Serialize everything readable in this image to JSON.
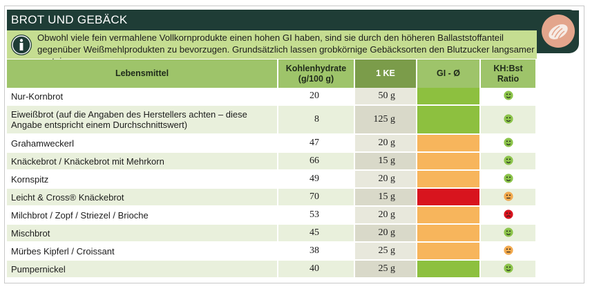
{
  "title": "BROT UND GEBÄCK",
  "icon": "bread-icon",
  "info": {
    "icon": "info-icon",
    "text": "Obwohl viele fein vermahlene Vollkornprodukte einen hohen GI haben, sind sie durch den höheren Ballaststoffanteil gegenüber Weißmehlprodukten zu bevorzugen. Grundsätzlich lassen grobkörnige Gebäcksorten den Blutzucker langsamer ansteigen."
  },
  "colors": {
    "header_green": "#9ec46a",
    "header_dark_green": "#7b9c4a",
    "title_bg": "#1f3d36",
    "gi_green": "#8dc03f",
    "gi_orange": "#f7b55c",
    "gi_red": "#d8141e",
    "smiley_green": "#8bc34a",
    "smiley_orange": "#f2a94e",
    "smiley_red": "#d8141e"
  },
  "table": {
    "headers": {
      "food": "Lebensmittel",
      "kh_line1": "Kohlenhydrate",
      "kh_line2": "(g/100 g)",
      "ke": "1 KE",
      "gi": "GI - Ø",
      "ratio_line1": "KH:Bst",
      "ratio_line2": "Ratio"
    },
    "rows": [
      {
        "food": "Nur-Kornbrot",
        "kh": "20",
        "ke": "50 g",
        "gi": "green",
        "ratio": "happy"
      },
      {
        "food": "Eiweißbrot (auf die Angaben des Herstellers achten – diese Angabe entspricht einem Durchschnittswert)",
        "kh": "8",
        "ke": "125 g",
        "gi": "green",
        "ratio": "happy"
      },
      {
        "food": "Grahamweckerl",
        "kh": "47",
        "ke": "20 g",
        "gi": "orange",
        "ratio": "happy"
      },
      {
        "food": "Knäckebrot / Knäckebrot mit Mehrkorn",
        "kh": "66",
        "ke": "15 g",
        "gi": "orange",
        "ratio": "happy"
      },
      {
        "food": "Kornspitz",
        "kh": "49",
        "ke": "20 g",
        "gi": "orange",
        "ratio": "happy"
      },
      {
        "food": "Leicht & Cross® Knäckebrot",
        "kh": "70",
        "ke": "15 g",
        "gi": "red",
        "ratio": "neutral"
      },
      {
        "food": "Milchbrot / Zopf / Striezel / Brioche",
        "kh": "53",
        "ke": "20 g",
        "gi": "orange",
        "ratio": "sad"
      },
      {
        "food": "Mischbrot",
        "kh": "45",
        "ke": "20 g",
        "gi": "orange",
        "ratio": "happy"
      },
      {
        "food": "Mürbes Kipferl / Croissant",
        "kh": "38",
        "ke": "25 g",
        "gi": "orange",
        "ratio": "neutral"
      },
      {
        "food": "Pumpernickel",
        "kh": "40",
        "ke": "25 g",
        "gi": "green",
        "ratio": "happy"
      }
    ]
  }
}
